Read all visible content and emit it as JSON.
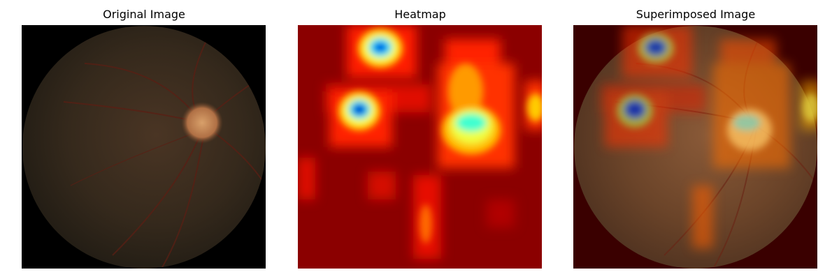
{
  "figure": {
    "panels": [
      {
        "title": "Original Image",
        "content": "retinal fundus photograph"
      },
      {
        "title": "Heatmap",
        "content": "activation heatmap (jet colormap)"
      },
      {
        "title": "Superimposed Image",
        "content": "heatmap overlaid on fundus photograph"
      }
    ],
    "colormap": "jet",
    "colors": {
      "background": "#ffffff",
      "fundus_border": "#000000",
      "heatmap_low": "#8b0000",
      "heatmap_mid": "#ff2a00",
      "heatmap_high": "#00ffff",
      "heatmap_peak": "#0000cd"
    }
  }
}
